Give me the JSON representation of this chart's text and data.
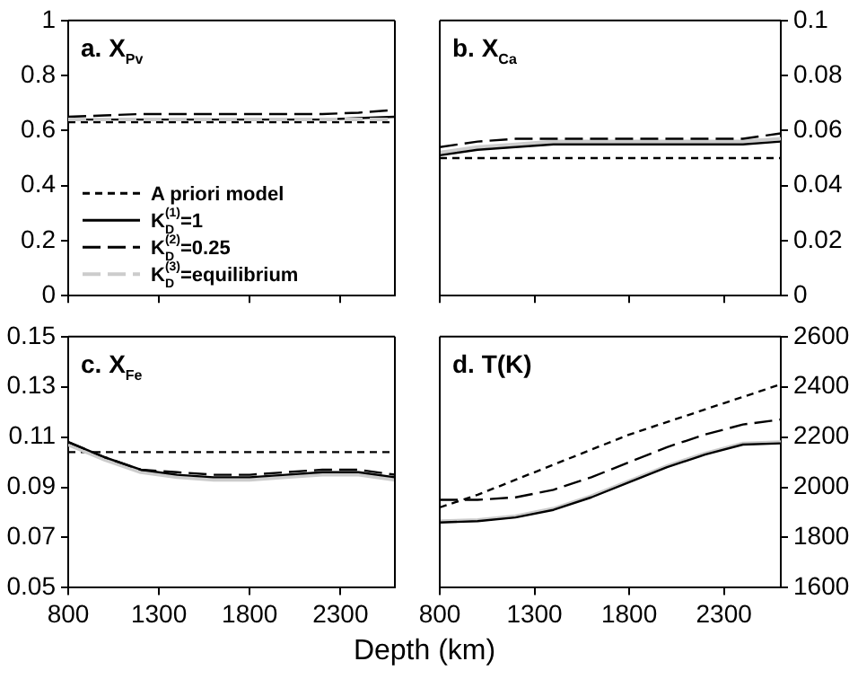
{
  "chart_data": [
    {
      "type": "line",
      "title": "a. X$_{Pv}$",
      "x": [
        800,
        1000,
        1200,
        1400,
        1600,
        1800,
        2000,
        2200,
        2400,
        2600
      ],
      "xlim": [
        800,
        2600
      ],
      "xticks": [
        800,
        1300,
        1800,
        2300
      ],
      "ylim": [
        0,
        1
      ],
      "yticks": [
        0,
        0.2,
        0.4,
        0.6,
        0.8,
        1
      ],
      "tick_labels": "y",
      "grid": false,
      "legend": "bottom left",
      "marker": "none",
      "series": [
        {
          "name": "A priori model",
          "color": "#000000",
          "line_style": "dotted",
          "values": [
            0.63,
            0.63,
            0.63,
            0.63,
            0.63,
            0.63,
            0.63,
            0.63,
            0.63,
            0.63
          ]
        },
        {
          "name": "K$_{D}$$^{(1)}$=1",
          "color": "#000000",
          "line_style": "solid",
          "values": [
            0.64,
            0.64,
            0.64,
            0.64,
            0.64,
            0.64,
            0.64,
            0.64,
            0.645,
            0.65
          ]
        },
        {
          "name": "K$_{D}$$^{(2)}$=0.25",
          "color": "#000000",
          "line_style": "dashed",
          "values": [
            0.65,
            0.655,
            0.66,
            0.66,
            0.66,
            0.66,
            0.66,
            0.66,
            0.665,
            0.675
          ]
        },
        {
          "name": "K$_{D}$$^{(3)}$=equilibrium",
          "color": "#cccccc",
          "line_style": "dashed",
          "values": [
            0.64,
            0.64,
            0.64,
            0.64,
            0.64,
            0.64,
            0.64,
            0.64,
            0.64,
            0.64
          ]
        }
      ]
    },
    {
      "type": "line",
      "title": "b. X$_{Ca}$",
      "x": [
        800,
        1000,
        1200,
        1400,
        1600,
        1800,
        2000,
        2200,
        2400,
        2600
      ],
      "xlim": [
        800,
        2600
      ],
      "xticks": [
        800,
        1300,
        1800,
        2300
      ],
      "ylim": [
        0,
        0.1
      ],
      "yticks": [
        0,
        0.02,
        0.04,
        0.06,
        0.08,
        0.1
      ],
      "tick_labels": "y",
      "grid": false,
      "marker": "none",
      "series": [
        {
          "color": "#000000",
          "line_style": "dotted",
          "values": [
            0.05,
            0.05,
            0.05,
            0.05,
            0.05,
            0.05,
            0.05,
            0.05,
            0.05,
            0.05
          ]
        },
        {
          "color": "#cccccc",
          "line_style": "solid",
          "values": [
            0.052,
            0.054,
            0.055,
            0.056,
            0.056,
            0.056,
            0.056,
            0.056,
            0.056,
            0.057
          ]
        },
        {
          "color": "#000000",
          "line_style": "solid",
          "values": [
            0.051,
            0.053,
            0.054,
            0.055,
            0.055,
            0.055,
            0.055,
            0.055,
            0.055,
            0.056
          ]
        },
        {
          "color": "#000000",
          "line_style": "dashed",
          "values": [
            0.054,
            0.056,
            0.057,
            0.057,
            0.057,
            0.057,
            0.057,
            0.057,
            0.057,
            0.059
          ]
        }
      ]
    },
    {
      "type": "line",
      "title": "c. X$_{Fe}$",
      "xlabel": "Depth (km)",
      "x": [
        800,
        1000,
        1200,
        1400,
        1600,
        1800,
        2000,
        2200,
        2400,
        2600
      ],
      "xlim": [
        800,
        2600
      ],
      "xticks": [
        800,
        1300,
        1800,
        2300
      ],
      "ylim": [
        0.05,
        0.15
      ],
      "yticks": [
        0.05,
        0.07,
        0.09,
        0.11,
        0.13,
        0.15
      ],
      "grid": false,
      "marker": "none",
      "series": [
        {
          "color": "#000000",
          "line_style": "dotted",
          "values": [
            0.104,
            0.104,
            0.104,
            0.104,
            0.104,
            0.104,
            0.104,
            0.104,
            0.104,
            0.104
          ]
        },
        {
          "color": "#cccccc",
          "line_style": "solid",
          "values": [
            0.107,
            0.101,
            0.096,
            0.094,
            0.093,
            0.093,
            0.094,
            0.095,
            0.095,
            0.093
          ]
        },
        {
          "color": "#000000",
          "line_style": "solid",
          "values": [
            0.108,
            0.102,
            0.097,
            0.095,
            0.094,
            0.094,
            0.095,
            0.096,
            0.096,
            0.094
          ]
        },
        {
          "color": "#000000",
          "line_style": "dashed",
          "values": [
            0.108,
            0.102,
            0.097,
            0.096,
            0.095,
            0.095,
            0.096,
            0.097,
            0.097,
            0.095
          ]
        }
      ]
    },
    {
      "type": "line",
      "title": "d. T(K)",
      "x": [
        800,
        1000,
        1200,
        1400,
        1600,
        1800,
        2000,
        2200,
        2400,
        2600
      ],
      "xlim": [
        800,
        2600
      ],
      "xticks": [
        800,
        1300,
        1800,
        2300
      ],
      "ylim": [
        1600,
        2600
      ],
      "yticks": [
        1600,
        1800,
        2000,
        2200,
        2400,
        2600
      ],
      "grid": false,
      "marker": "none",
      "series": [
        {
          "color": "#000000",
          "line_style": "dotted",
          "values": [
            1920,
            1970,
            2030,
            2090,
            2150,
            2210,
            2260,
            2310,
            2360,
            2410
          ]
        },
        {
          "color": "#cccccc",
          "line_style": "solid",
          "values": [
            1865,
            1870,
            1885,
            1915,
            1965,
            2025,
            2085,
            2135,
            2175,
            2180
          ]
        },
        {
          "color": "#000000",
          "line_style": "solid",
          "values": [
            1860,
            1865,
            1880,
            1910,
            1960,
            2020,
            2080,
            2130,
            2170,
            2175
          ]
        },
        {
          "color": "#000000",
          "line_style": "dashed",
          "values": [
            1950,
            1950,
            1960,
            1990,
            2040,
            2100,
            2160,
            2210,
            2250,
            2270
          ]
        }
      ]
    }
  ]
}
